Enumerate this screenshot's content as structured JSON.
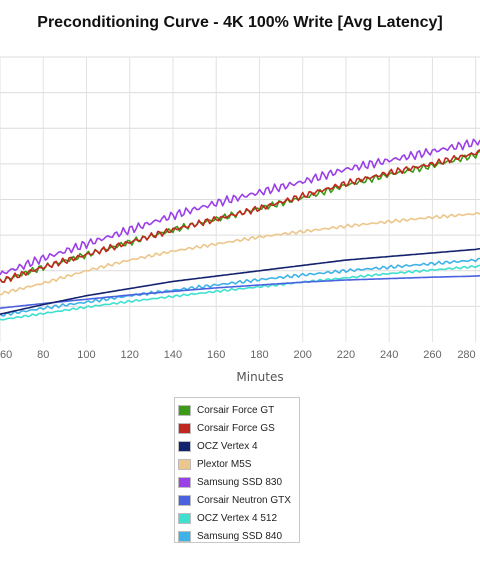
{
  "chart_data": {
    "type": "line",
    "title": "Preconditioning Curve - 4K 100% Write [Avg Latency]",
    "xlabel": "Minutes",
    "ylabel": "",
    "xlim": [
      60,
      282
    ],
    "ylim": [
      0,
      8
    ],
    "x_ticks": [
      "60",
      "80",
      "100",
      "120",
      "140",
      "160",
      "180",
      "200",
      "220",
      "240",
      "260",
      "280"
    ],
    "grid": true,
    "legend_position": "bottom-center",
    "series": [
      {
        "name": "Corsair Force GT",
        "color": "#3b9a16",
        "noise": 0.06,
        "x": [
          60,
          80,
          100,
          120,
          140,
          160,
          180,
          200,
          220,
          240,
          260,
          280,
          282
        ],
        "values": [
          1.7,
          2.1,
          2.45,
          2.8,
          3.15,
          3.45,
          3.75,
          4.05,
          4.4,
          4.7,
          4.95,
          5.25,
          5.3
        ]
      },
      {
        "name": "Corsair Force GS",
        "color": "#c0271e",
        "noise": 0.06,
        "x": [
          60,
          80,
          100,
          120,
          140,
          160,
          180,
          200,
          220,
          240,
          260,
          280,
          282
        ],
        "values": [
          1.7,
          2.1,
          2.45,
          2.8,
          3.15,
          3.45,
          3.75,
          4.1,
          4.45,
          4.75,
          5.0,
          5.3,
          5.35
        ]
      },
      {
        "name": "OCZ Vertex 4",
        "color": "#12226e",
        "noise": 0.0,
        "x": [
          60,
          80,
          100,
          120,
          140,
          160,
          180,
          200,
          220,
          240,
          260,
          280,
          282
        ],
        "values": [
          0.78,
          1.05,
          1.3,
          1.5,
          1.7,
          1.85,
          2.0,
          2.15,
          2.3,
          2.4,
          2.5,
          2.6,
          2.62
        ]
      },
      {
        "name": "Plextor M5S",
        "color": "#ecc68a",
        "noise": 0.03,
        "x": [
          60,
          80,
          100,
          120,
          140,
          160,
          180,
          200,
          220,
          240,
          260,
          280,
          282
        ],
        "values": [
          1.35,
          1.65,
          2.0,
          2.3,
          2.55,
          2.75,
          2.95,
          3.1,
          3.25,
          3.38,
          3.5,
          3.6,
          3.62
        ]
      },
      {
        "name": "Samsung SSD 830",
        "color": "#9b3fe8",
        "noise": 0.08,
        "x": [
          60,
          80,
          100,
          120,
          140,
          160,
          180,
          200,
          220,
          240,
          260,
          280,
          282
        ],
        "values": [
          1.9,
          2.35,
          2.75,
          3.15,
          3.55,
          3.9,
          4.2,
          4.5,
          4.85,
          5.1,
          5.35,
          5.6,
          5.65
        ]
      },
      {
        "name": "Corsair Neutron GTX",
        "color": "#4a62e0",
        "noise": 0.0,
        "x": [
          60,
          80,
          100,
          120,
          140,
          160,
          180,
          200,
          220,
          240,
          260,
          280,
          282
        ],
        "values": [
          0.95,
          1.08,
          1.2,
          1.32,
          1.42,
          1.52,
          1.6,
          1.68,
          1.74,
          1.78,
          1.82,
          1.85,
          1.86
        ]
      },
      {
        "name": "OCZ Vertex 4 512",
        "color": "#40e0d0",
        "noise": 0.02,
        "x": [
          60,
          80,
          100,
          120,
          140,
          160,
          180,
          200,
          220,
          240,
          260,
          280,
          282
        ],
        "values": [
          0.62,
          0.8,
          0.98,
          1.14,
          1.28,
          1.42,
          1.55,
          1.68,
          1.8,
          1.92,
          2.02,
          2.12,
          2.14
        ]
      },
      {
        "name": "Samsung SSD 840",
        "color": "#3fb2e8",
        "noise": 0.03,
        "x": [
          60,
          80,
          100,
          120,
          140,
          160,
          180,
          200,
          220,
          240,
          260,
          280,
          282
        ],
        "values": [
          0.75,
          0.95,
          1.12,
          1.3,
          1.45,
          1.6,
          1.75,
          1.88,
          2.0,
          2.1,
          2.2,
          2.3,
          2.32
        ]
      }
    ]
  }
}
